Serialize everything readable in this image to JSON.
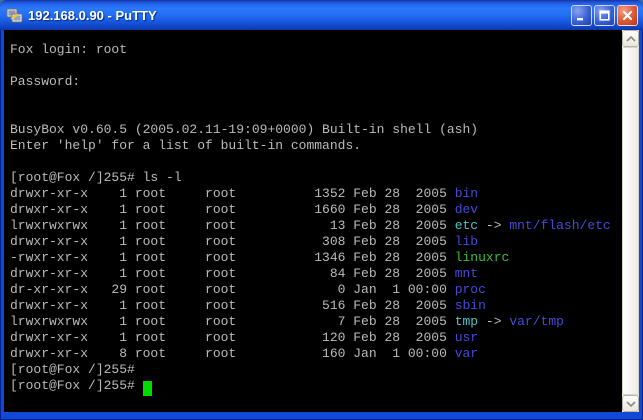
{
  "window": {
    "title": "192.168.0.90 - PuTTY",
    "app_icon": "putty-terminals-icon",
    "controls": {
      "minimize": "minimize",
      "maximize": "maximize",
      "close": "close"
    }
  },
  "colors": {
    "fg": "#bbbbbb",
    "dir": "#4949d8",
    "link": "#4fc4c4",
    "exec": "#3cbe3c",
    "cursor": "#00dc00",
    "background": "#000000",
    "titlebar": "#2470f6",
    "close_button": "#dd5f3a"
  },
  "scrollbar": {
    "up_icon": "chevron-up-icon",
    "down_icon": "chevron-down-icon"
  },
  "terminal": {
    "lines": [
      {
        "segments": [
          {
            "t": "Fox login: root",
            "c": "fg"
          }
        ]
      },
      {
        "segments": []
      },
      {
        "segments": [
          {
            "t": "Password:",
            "c": "fg"
          }
        ]
      },
      {
        "segments": []
      },
      {
        "segments": []
      },
      {
        "segments": [
          {
            "t": "BusyBox v0.60.5 (2005.02.11-19:09+0000) Built-in shell (ash)",
            "c": "fg"
          }
        ]
      },
      {
        "segments": [
          {
            "t": "Enter 'help' for a list of built-in commands.",
            "c": "fg"
          }
        ]
      },
      {
        "segments": []
      },
      {
        "segments": [
          {
            "t": "[root@Fox /]255# ls -l",
            "c": "fg"
          }
        ]
      },
      {
        "segments": [
          {
            "t": "drwxr-xr-x    1 root     root          1352 Feb 28  2005 ",
            "c": "fg"
          },
          {
            "t": "bin",
            "c": "dir"
          }
        ]
      },
      {
        "segments": [
          {
            "t": "drwxr-xr-x    1 root     root          1660 Feb 28  2005 ",
            "c": "fg"
          },
          {
            "t": "dev",
            "c": "dir"
          }
        ]
      },
      {
        "segments": [
          {
            "t": "lrwxrwxrwx    1 root     root            13 Feb 28  2005 ",
            "c": "fg"
          },
          {
            "t": "etc",
            "c": "link"
          },
          {
            "t": " -> ",
            "c": "fg"
          },
          {
            "t": "mnt/flash/etc",
            "c": "dir"
          }
        ]
      },
      {
        "segments": [
          {
            "t": "drwxr-xr-x    1 root     root           308 Feb 28  2005 ",
            "c": "fg"
          },
          {
            "t": "lib",
            "c": "dir"
          }
        ]
      },
      {
        "segments": [
          {
            "t": "-rwxr-xr-x    1 root     root          1346 Feb 28  2005 ",
            "c": "fg"
          },
          {
            "t": "linuxrc",
            "c": "exec"
          }
        ]
      },
      {
        "segments": [
          {
            "t": "drwxr-xr-x    1 root     root            84 Feb 28  2005 ",
            "c": "fg"
          },
          {
            "t": "mnt",
            "c": "dir"
          }
        ]
      },
      {
        "segments": [
          {
            "t": "dr-xr-xr-x   29 root     root             0 Jan  1 00:00 ",
            "c": "fg"
          },
          {
            "t": "proc",
            "c": "dir"
          }
        ]
      },
      {
        "segments": [
          {
            "t": "drwxr-xr-x    1 root     root           516 Feb 28  2005 ",
            "c": "fg"
          },
          {
            "t": "sbin",
            "c": "dir"
          }
        ]
      },
      {
        "segments": [
          {
            "t": "lrwxrwxrwx    1 root     root             7 Feb 28  2005 ",
            "c": "fg"
          },
          {
            "t": "tmp",
            "c": "link"
          },
          {
            "t": " -> ",
            "c": "fg"
          },
          {
            "t": "var/tmp",
            "c": "dir"
          }
        ]
      },
      {
        "segments": [
          {
            "t": "drwxr-xr-x    1 root     root           120 Feb 28  2005 ",
            "c": "fg"
          },
          {
            "t": "usr",
            "c": "dir"
          }
        ]
      },
      {
        "segments": [
          {
            "t": "drwxr-xr-x    8 root     root           160 Jan  1 00:00 ",
            "c": "fg"
          },
          {
            "t": "var",
            "c": "dir"
          }
        ]
      },
      {
        "segments": [
          {
            "t": "[root@Fox /]255#",
            "c": "fg"
          }
        ]
      },
      {
        "segments": [
          {
            "t": "[root@Fox /]255# ",
            "c": "fg"
          },
          {
            "t": " ",
            "c": "cursor"
          }
        ]
      }
    ]
  }
}
